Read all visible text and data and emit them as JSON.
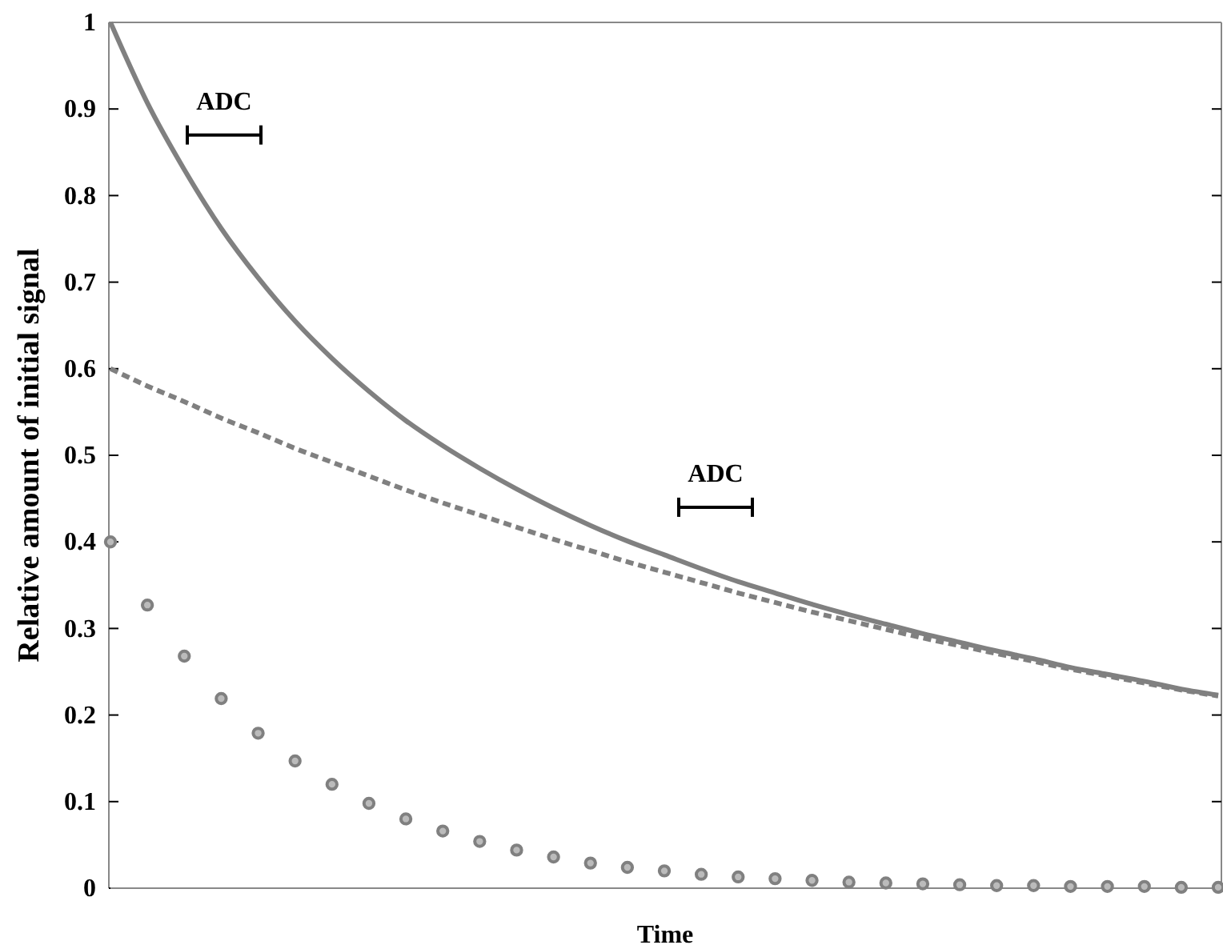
{
  "chart_data": {
    "type": "line",
    "xlabel": "Time",
    "ylabel": "Relative amount of initial signal",
    "categories": [
      null,
      null,
      null,
      null,
      null,
      null,
      null,
      null,
      null,
      null,
      null,
      null,
      null,
      null,
      null,
      null,
      null,
      null,
      null,
      null,
      null,
      null,
      null,
      null,
      null,
      null,
      null,
      null,
      null,
      null,
      null
    ],
    "series": [
      {
        "color": "#808080",
        "line_style": "solid",
        "values": [
          1.0,
          0.907,
          0.83,
          0.762,
          0.705,
          0.655,
          0.612,
          0.574,
          0.54,
          0.511,
          0.485,
          0.461,
          0.439,
          0.419,
          0.401,
          0.385,
          0.369,
          0.354,
          0.341,
          0.328,
          0.316,
          0.305,
          0.294,
          0.284,
          0.274,
          0.265,
          0.255,
          0.247,
          0.239,
          0.23,
          0.223
        ]
      },
      {
        "color": "#808080",
        "line_style": "dashed",
        "values": [
          0.6,
          0.58,
          0.562,
          0.543,
          0.526,
          0.508,
          0.492,
          0.476,
          0.46,
          0.445,
          0.431,
          0.417,
          0.403,
          0.39,
          0.377,
          0.365,
          0.353,
          0.341,
          0.33,
          0.319,
          0.309,
          0.299,
          0.289,
          0.28,
          0.271,
          0.262,
          0.253,
          0.245,
          0.237,
          0.229,
          0.222
        ]
      },
      {
        "type": "scatter",
        "marker": "circle",
        "color": "#808080",
        "values": [
          0.4,
          0.327,
          0.268,
          0.219,
          0.179,
          0.147,
          0.12,
          0.098,
          0.08,
          0.066,
          0.054,
          0.044,
          0.036,
          0.029,
          0.024,
          0.02,
          0.016,
          0.013,
          0.011,
          0.009,
          0.007,
          0.006,
          0.005,
          0.004,
          0.003,
          0.003,
          0.002,
          0.002,
          0.002,
          0.001,
          0.001
        ]
      }
    ],
    "ylim": [
      0,
      1
    ],
    "yticks": [
      0,
      0.1,
      0.2,
      0.3,
      0.4,
      0.5,
      0.6,
      0.7,
      0.8,
      0.9,
      1
    ],
    "tick_labels": "y",
    "annotations": [
      "ADC",
      "ADC"
    ]
  }
}
